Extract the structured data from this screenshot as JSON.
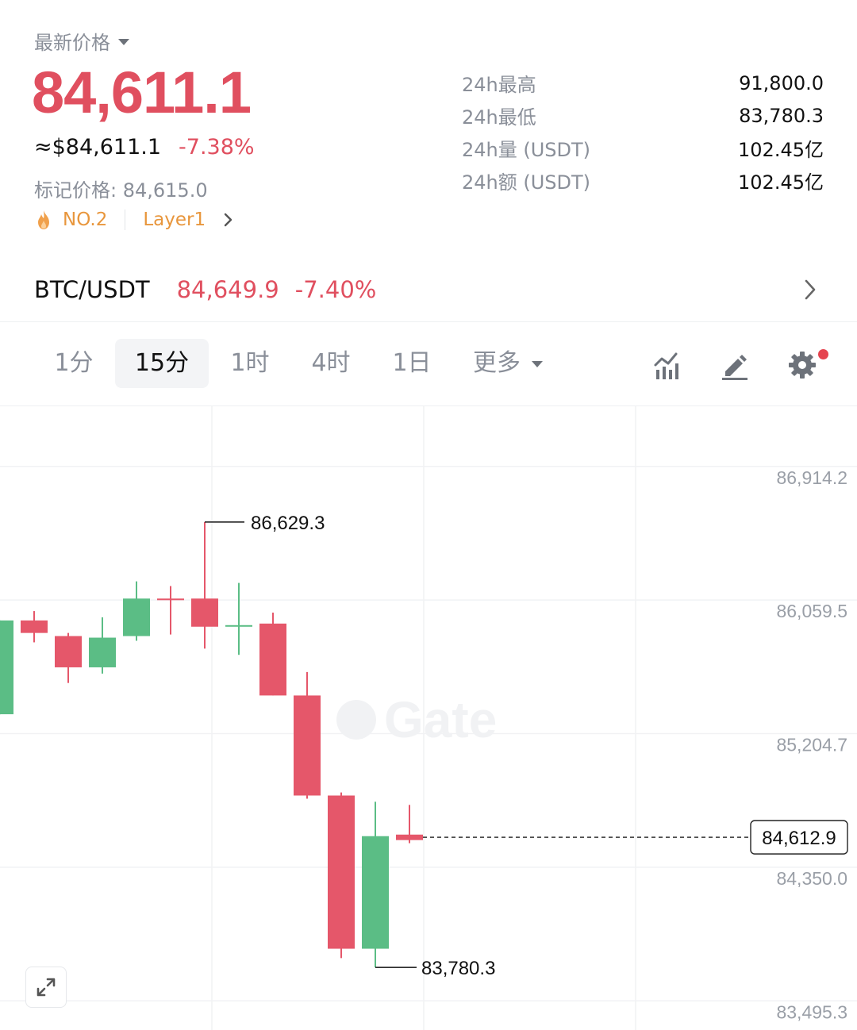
{
  "header": {
    "latest_label": "最新价格",
    "price": "84,611.1",
    "usd_price": "≈$84,611.1",
    "change_pct": "-7.38%",
    "mark_price": "标记价格: 84,615.0",
    "rank_tag": "NO.2",
    "category_tag": "Layer1"
  },
  "stats": [
    {
      "label": "24h最高",
      "value": "91,800.0"
    },
    {
      "label": "24h最低",
      "value": "83,780.3"
    },
    {
      "label": "24h量 (USDT)",
      "value": "102.45亿"
    },
    {
      "label": "24h额 (USDT)",
      "value": "102.45亿"
    }
  ],
  "pair": {
    "symbol": "BTC/USDT",
    "price": "84,649.9",
    "change": "-7.40%"
  },
  "timeframes": {
    "items": [
      "1分",
      "15分",
      "1时",
      "4时",
      "1日"
    ],
    "active": "15分",
    "more_label": "更多"
  },
  "colors": {
    "up": "#5bbd85",
    "down": "#e5576a",
    "accent_orange": "#e8963c"
  },
  "chart_data": {
    "type": "candlestick",
    "y_ticks": [
      "86,914.2",
      "86,059.5",
      "85,204.7",
      "84,350.0",
      "83,495.3"
    ],
    "y_tick_values": [
      86914.2,
      86059.5,
      85204.7,
      84350.0,
      83495.3
    ],
    "ylim": [
      83380,
      87370
    ],
    "current_price": "84,612.9",
    "current_price_value": 84612.9,
    "high_marker": "86,629.3",
    "high_marker_value": 86629.3,
    "low_marker": "83,780.3",
    "low_marker_value": 83780.3,
    "watermark": "Gate",
    "candles": [
      {
        "o": 85400,
        "c": 86000,
        "h": 86000,
        "l": 85400
      },
      {
        "o": 86000,
        "c": 85920,
        "h": 86060,
        "l": 85860
      },
      {
        "o": 85900,
        "c": 85700,
        "h": 85920,
        "l": 85600
      },
      {
        "o": 85700,
        "c": 85890,
        "h": 86020,
        "l": 85660
      },
      {
        "o": 85900,
        "c": 86140,
        "h": 86250,
        "l": 85870
      },
      {
        "o": 86140,
        "c": 86130,
        "h": 86220,
        "l": 85910
      },
      {
        "o": 86140,
        "c": 85960,
        "h": 86629.3,
        "l": 85820
      },
      {
        "o": 85960,
        "c": 85970,
        "h": 86240,
        "l": 85780
      },
      {
        "o": 85980,
        "c": 85520,
        "h": 86050,
        "l": 85520
      },
      {
        "o": 85520,
        "c": 84880,
        "h": 85670,
        "l": 84860
      },
      {
        "o": 84880,
        "c": 83900,
        "h": 84900,
        "l": 83840
      },
      {
        "o": 83900,
        "c": 84620,
        "h": 84840,
        "l": 83780.3
      },
      {
        "o": 84630,
        "c": 84595,
        "h": 84820,
        "l": 84575
      }
    ]
  }
}
